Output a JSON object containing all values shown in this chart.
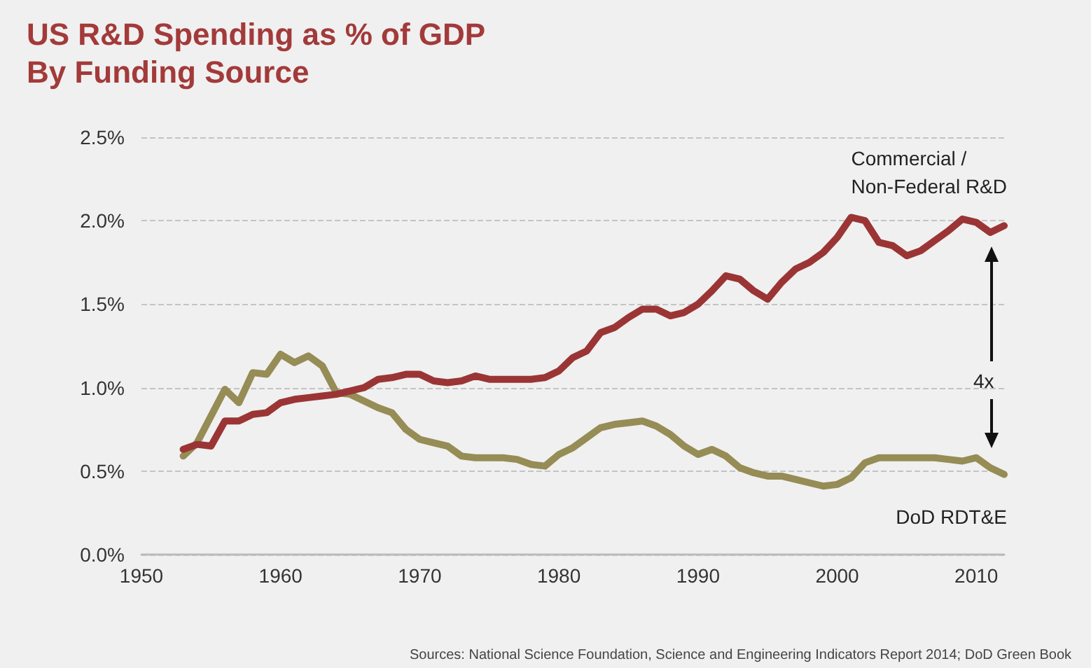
{
  "chart_data": {
    "type": "line",
    "title": "US R&D Spending as % of GDP\nBy Funding Source",
    "x": [
      1953,
      1954,
      1955,
      1956,
      1957,
      1958,
      1959,
      1960,
      1961,
      1962,
      1963,
      1964,
      1965,
      1966,
      1967,
      1968,
      1969,
      1970,
      1971,
      1972,
      1973,
      1974,
      1975,
      1976,
      1977,
      1978,
      1979,
      1980,
      1981,
      1982,
      1983,
      1984,
      1985,
      1986,
      1987,
      1988,
      1989,
      1990,
      1991,
      1992,
      1993,
      1994,
      1995,
      1996,
      1997,
      1998,
      1999,
      2000,
      2001,
      2002,
      2003,
      2004,
      2005,
      2006,
      2007,
      2008,
      2009,
      2010,
      2011,
      2012
    ],
    "series": [
      {
        "name": "Commercial /\nNon-Federal R&D",
        "color": "#9b3535",
        "values": [
          0.63,
          0.66,
          0.65,
          0.8,
          0.8,
          0.84,
          0.85,
          0.91,
          0.93,
          0.94,
          0.95,
          0.96,
          0.98,
          1.0,
          1.05,
          1.06,
          1.08,
          1.08,
          1.04,
          1.03,
          1.04,
          1.07,
          1.05,
          1.05,
          1.05,
          1.05,
          1.06,
          1.1,
          1.18,
          1.22,
          1.33,
          1.36,
          1.42,
          1.47,
          1.47,
          1.43,
          1.45,
          1.5,
          1.58,
          1.67,
          1.65,
          1.58,
          1.53,
          1.63,
          1.71,
          1.75,
          1.81,
          1.9,
          2.02,
          2.0,
          1.87,
          1.85,
          1.79,
          1.82,
          1.88,
          1.94,
          2.01,
          1.99,
          1.93,
          1.97
        ]
      },
      {
        "name": "DoD RDT&E",
        "color": "#968c55",
        "values": [
          0.59,
          0.67,
          0.83,
          0.99,
          0.91,
          1.09,
          1.08,
          1.2,
          1.15,
          1.19,
          1.13,
          0.97,
          0.96,
          0.92,
          0.88,
          0.85,
          0.75,
          0.69,
          0.67,
          0.65,
          0.59,
          0.58,
          0.58,
          0.58,
          0.57,
          0.54,
          0.53,
          0.6,
          0.64,
          0.7,
          0.76,
          0.78,
          0.79,
          0.8,
          0.77,
          0.72,
          0.65,
          0.6,
          0.63,
          0.59,
          0.52,
          0.49,
          0.47,
          0.47,
          0.45,
          0.43,
          0.41,
          0.42,
          0.46,
          0.55,
          0.58,
          0.58,
          0.58,
          0.58,
          0.58,
          0.57,
          0.56,
          0.58,
          0.52,
          0.48
        ]
      }
    ],
    "xlim": [
      1950,
      2012
    ],
    "xticks": [
      1950,
      1960,
      1970,
      1980,
      1990,
      2000,
      2010
    ],
    "ylim": [
      0,
      2.5
    ],
    "yticks": [
      {
        "value": 0,
        "label": "0.0%"
      },
      {
        "value": 0.5,
        "label": "0.5%"
      },
      {
        "value": 1,
        "label": "1.0%"
      },
      {
        "value": 1.5,
        "label": "1.5%"
      },
      {
        "value": 2,
        "label": "2.0%"
      },
      {
        "value": 2.5,
        "label": "2.5%"
      }
    ],
    "grid": "y",
    "legend": false,
    "marker": "none",
    "line_style": "solid",
    "annotations": [
      "4x",
      "Sources: National Science Foundation, Science and Engineering Indicators Report 2014; DoD Green Book"
    ]
  }
}
